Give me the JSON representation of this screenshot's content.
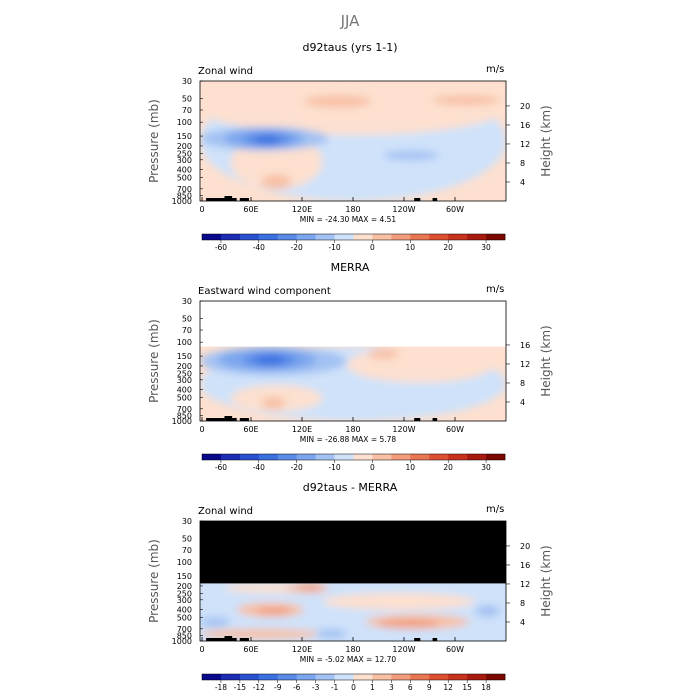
{
  "figure_title": "JJA",
  "chart_data": [
    {
      "type": "heatmap",
      "title": "d92taus (yrs 1-1)",
      "variable": "Zonal wind",
      "units": "m/s",
      "xlabel": "",
      "ylabel_left": "Pressure (mb)",
      "ylabel_right": "Height (km)",
      "x_ticks": [
        "0",
        "60E",
        "120E",
        "180",
        "120W",
        "60W"
      ],
      "y_ticks": [
        "30",
        "50",
        "70",
        "100",
        "150",
        "200",
        "250",
        "300",
        "400",
        "500",
        "700",
        "850",
        "1000"
      ],
      "height_ticks": [
        "20",
        "16",
        "12",
        "8",
        "4"
      ],
      "stats": "MIN = -24.30   MAX =   4.51",
      "min": -24.3,
      "max": 4.51,
      "colorbar_levels": [
        -70,
        -60,
        -50,
        -40,
        -30,
        -20,
        -15,
        -10,
        -5,
        0,
        5,
        10,
        15,
        20,
        25,
        30,
        35
      ],
      "colorbar_labels": [
        "-60",
        "-40",
        "-20",
        "-10",
        "0",
        "10",
        "20",
        "30"
      ],
      "label_positions": [
        1,
        3,
        5,
        7,
        9,
        11,
        13,
        15
      ],
      "mask_above_hpa": null
    },
    {
      "type": "heatmap",
      "title": "MERRA",
      "variable": "Eastward wind component",
      "units": "m/s",
      "xlabel": "",
      "ylabel_left": "Pressure (mb)",
      "ylabel_right": "Height (km)",
      "x_ticks": [
        "0",
        "60E",
        "120E",
        "180",
        "120W",
        "60W"
      ],
      "y_ticks": [
        "30",
        "50",
        "70",
        "100",
        "150",
        "200",
        "250",
        "300",
        "400",
        "500",
        "700",
        "850",
        "1000"
      ],
      "height_ticks": [
        "16",
        "12",
        "8",
        "4"
      ],
      "stats": "MIN = -26.88   MAX =   5.78",
      "min": -26.88,
      "max": 5.78,
      "colorbar_levels": [
        -70,
        -60,
        -50,
        -40,
        -30,
        -20,
        -15,
        -10,
        -5,
        0,
        5,
        10,
        15,
        20,
        25,
        30,
        35
      ],
      "colorbar_labels": [
        "-60",
        "-40",
        "-20",
        "-10",
        "0",
        "10",
        "20",
        "30"
      ],
      "label_positions": [
        1,
        3,
        5,
        7,
        9,
        11,
        13,
        15
      ],
      "mask_above_hpa": "blank"
    },
    {
      "type": "heatmap",
      "title": "d92taus - MERRA",
      "variable": "Zonal wind",
      "units": "m/s",
      "xlabel": "",
      "ylabel_left": "Pressure (mb)",
      "ylabel_right": "Height (km)",
      "x_ticks": [
        "0",
        "60E",
        "120E",
        "180",
        "120W",
        "60W"
      ],
      "y_ticks": [
        "30",
        "50",
        "70",
        "100",
        "150",
        "200",
        "250",
        "300",
        "400",
        "500",
        "700",
        "850",
        "1000"
      ],
      "height_ticks": [
        "20",
        "16",
        "12",
        "8",
        "4"
      ],
      "stats": "MIN = -5.02   MAX =  12.70",
      "min": -5.02,
      "max": 12.7,
      "colorbar_levels": [
        -21,
        -18,
        -15,
        -12,
        -9,
        -6,
        -3,
        -1,
        0,
        1,
        3,
        6,
        9,
        12,
        15,
        18,
        21
      ],
      "colorbar_labels": [
        "-18",
        "-15",
        "-12",
        "-9",
        "-6",
        "-3",
        "-1",
        "0",
        "1",
        "3",
        "6",
        "9",
        "12",
        "15",
        "18"
      ],
      "label_positions": [
        1,
        2,
        3,
        4,
        5,
        6,
        7,
        8,
        9,
        10,
        11,
        12,
        13,
        14,
        15
      ],
      "mask_above_hpa": "black"
    }
  ],
  "colorbar_colors": [
    "#08088a",
    "#1c2cb4",
    "#2850d0",
    "#3a6fe0",
    "#5a8be8",
    "#7ba6ee",
    "#a3c2f3",
    "#cfe2fa",
    "#fde0cf",
    "#f8c0a4",
    "#f29c7b",
    "#e97553",
    "#dd4f30",
    "#c8321c",
    "#a81a10",
    "#7a0800"
  ]
}
